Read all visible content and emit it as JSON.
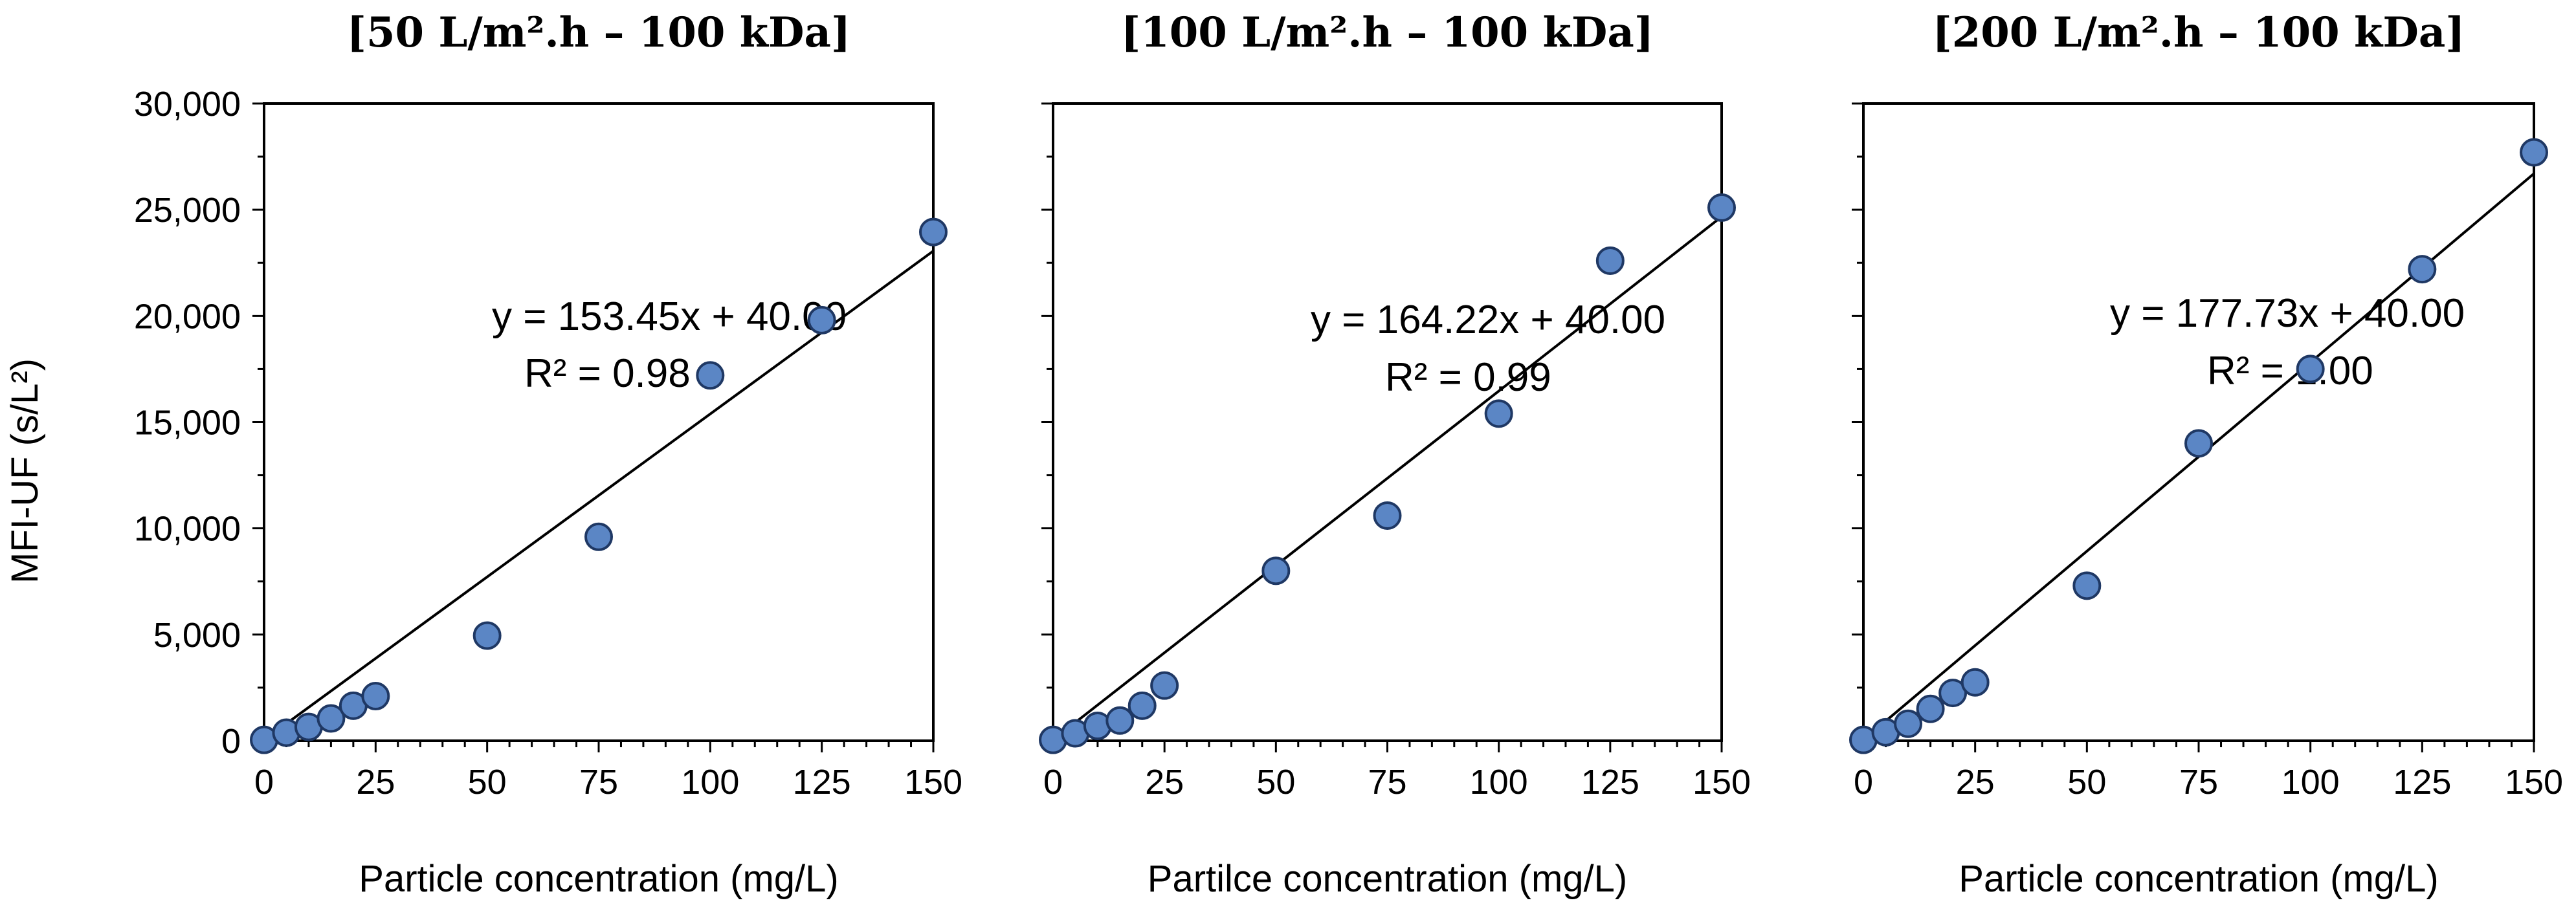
{
  "colors": {
    "marker_fill": "#5b86c5",
    "marker_stroke": "#1f3864",
    "trendline": "#000000"
  },
  "ylabel": "MFI-UF (s/L²)",
  "yticks": [
    "0",
    "5,000",
    "10,000",
    "15,000",
    "20,000",
    "25,000",
    "30,000"
  ],
  "xticks": [
    "0",
    "25",
    "50",
    "75",
    "100",
    "125",
    "150"
  ],
  "chart_data": [
    {
      "type": "scatter",
      "title": "[50 L/m².h – 100 kDa]",
      "xlabel": "Particle concentration (mg/L)",
      "ylabel": "MFI-UF (s/L²)",
      "xlim": [
        0,
        150
      ],
      "ylim": [
        0,
        30000
      ],
      "x": [
        0,
        5,
        10,
        15,
        20,
        25,
        50,
        75,
        100,
        125,
        150
      ],
      "y": [
        40,
        380,
        650,
        1050,
        1650,
        2100,
        4950,
        9600,
        17200,
        19800,
        23950
      ],
      "trendline": {
        "slope": 153.45,
        "intercept": 40.0
      },
      "equation": "y = 153.45x + 40.00",
      "r2": "R² = 0.98"
    },
    {
      "type": "scatter",
      "title": "[100 L/m².h – 100 kDa]",
      "xlabel": "Partilce concentration  (mg/L)",
      "ylabel": "",
      "xlim": [
        0,
        150
      ],
      "ylim": [
        0,
        30000
      ],
      "x": [
        0,
        5,
        10,
        15,
        20,
        25,
        50,
        75,
        100,
        125,
        150
      ],
      "y": [
        40,
        350,
        700,
        950,
        1650,
        2600,
        8000,
        10600,
        15400,
        22600,
        25100
      ],
      "trendline": {
        "slope": 164.22,
        "intercept": 40.0
      },
      "equation": "y = 164.22x + 40.00",
      "r2": "R² = 0.99"
    },
    {
      "type": "scatter",
      "title": "[200 L/m².h – 100 kDa]",
      "xlabel": "Particle concentration (mg/L)",
      "ylabel": "",
      "xlim": [
        0,
        150
      ],
      "ylim": [
        0,
        30000
      ],
      "x": [
        0,
        5,
        10,
        15,
        20,
        25,
        50,
        75,
        100,
        125,
        150
      ],
      "y": [
        40,
        400,
        800,
        1500,
        2250,
        2750,
        7300,
        14000,
        17500,
        22200,
        27700
      ],
      "trendline": {
        "slope": 177.73,
        "intercept": 40.0
      },
      "equation": "y = 177.73x + 40.00",
      "r2": "R² = 1.00"
    }
  ]
}
